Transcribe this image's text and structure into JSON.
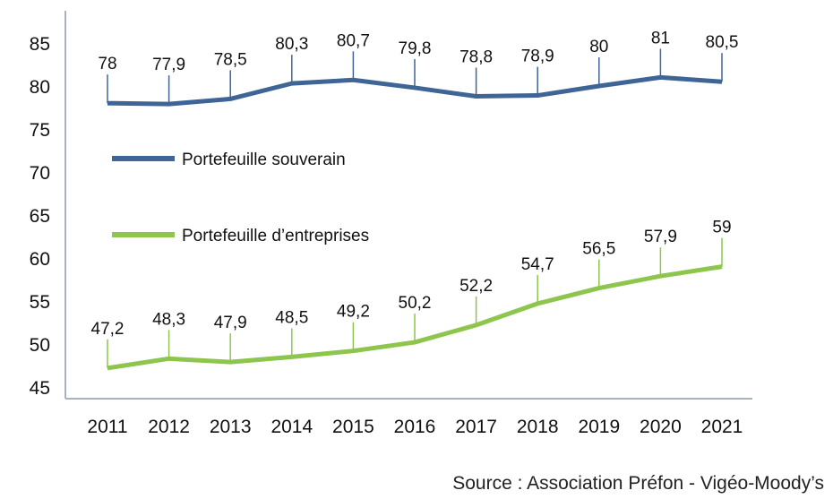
{
  "chart_data": {
    "type": "line",
    "x": [
      "2011",
      "2012",
      "2013",
      "2014",
      "2015",
      "2016",
      "2017",
      "2018",
      "2019",
      "2020",
      "2021"
    ],
    "ylim": [
      45,
      85
    ],
    "yticks": [
      45,
      50,
      55,
      60,
      65,
      70,
      75,
      80,
      85
    ],
    "grid": false,
    "legend": "center-left",
    "series": [
      {
        "name": "Portefeuille souverain",
        "color": "#3f6596",
        "values": [
          78,
          77.9,
          78.5,
          80.3,
          80.7,
          79.8,
          78.8,
          78.9,
          80,
          81,
          80.5
        ],
        "labels": [
          "78",
          "77,9",
          "78,5",
          "80,3",
          "80,7",
          "79,8",
          "78,8",
          "78,9",
          "80",
          "81",
          "80,5"
        ]
      },
      {
        "name": "Portefeuille d’entreprises",
        "color": "#8dc54d",
        "values": [
          47.2,
          48.3,
          47.9,
          48.5,
          49.2,
          50.2,
          52.2,
          54.7,
          56.5,
          57.9,
          59
        ],
        "labels": [
          "47,2",
          "48,3",
          "47,9",
          "48,5",
          "49,2",
          "50,2",
          "52,2",
          "54,7",
          "56,5",
          "57,9",
          "59"
        ]
      }
    ],
    "source": "Source : Association Préfon - Vigéo-Moody’s"
  }
}
